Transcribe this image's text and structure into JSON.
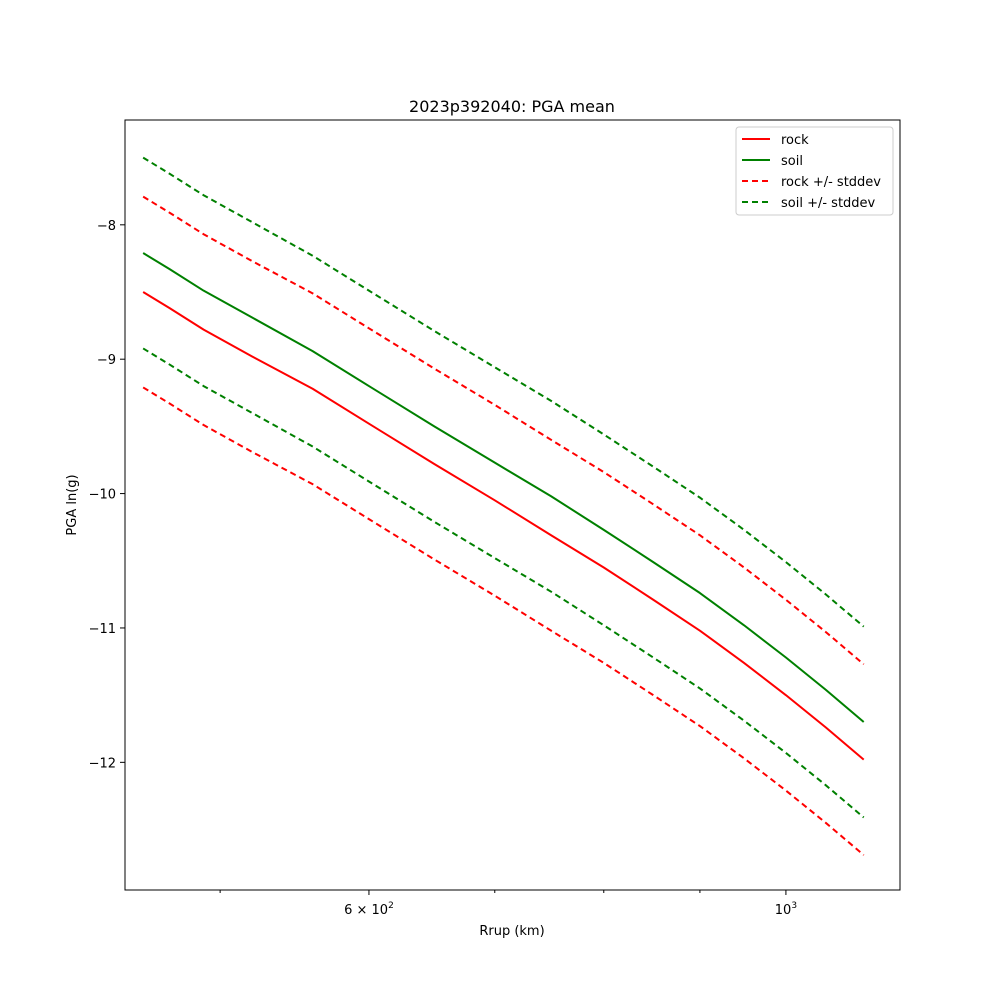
{
  "chart_data": {
    "type": "line",
    "title": "2023p392040: PGA mean",
    "xlabel": "Rrup (km)",
    "ylabel": "PGA ln(g)",
    "xscale": "log",
    "xlim": [
      445,
      1150
    ],
    "ylim": [
      -12.95,
      -7.22
    ],
    "grid": false,
    "legend_position": "top-right",
    "x": [
      455,
      470,
      490,
      520,
      560,
      600,
      650,
      700,
      750,
      800,
      850,
      900,
      950,
      1000,
      1050,
      1100
    ],
    "x_ticks": [
      {
        "value": 600,
        "base": "6",
        "exp": "2",
        "label_prefix": "6 × 10",
        "label": "6×10^2"
      },
      {
        "value": 1000,
        "base": "10",
        "exp": "3",
        "label": "10^3"
      }
    ],
    "x_minor_ticks": [
      500,
      700,
      800,
      900
    ],
    "y_ticks": [
      {
        "value": -8,
        "label": "−8"
      },
      {
        "value": -9,
        "label": "−9"
      },
      {
        "value": -10,
        "label": "−10"
      },
      {
        "value": -11,
        "label": "−11"
      },
      {
        "value": -12,
        "label": "−12"
      }
    ],
    "series": [
      {
        "name": "rock",
        "color": "#ff0000",
        "style": "solid",
        "values": [
          -8.5,
          -8.62,
          -8.78,
          -8.98,
          -9.22,
          -9.48,
          -9.78,
          -10.05,
          -10.31,
          -10.55,
          -10.79,
          -11.02,
          -11.26,
          -11.5,
          -11.74,
          -11.98
        ]
      },
      {
        "name": "soil",
        "color": "#008000",
        "style": "solid",
        "values": [
          -8.21,
          -8.33,
          -8.49,
          -8.69,
          -8.94,
          -9.2,
          -9.5,
          -9.77,
          -10.02,
          -10.27,
          -10.51,
          -10.74,
          -10.98,
          -11.22,
          -11.46,
          -11.7
        ]
      },
      {
        "name": "rock +/- stddev",
        "color": "#ff0000",
        "style": "dashed",
        "upper": [
          -7.79,
          -7.91,
          -8.07,
          -8.27,
          -8.51,
          -8.77,
          -9.07,
          -9.34,
          -9.6,
          -9.84,
          -10.08,
          -10.31,
          -10.55,
          -10.79,
          -11.03,
          -11.27
        ],
        "lower": [
          -9.21,
          -9.33,
          -9.49,
          -9.69,
          -9.93,
          -10.19,
          -10.49,
          -10.76,
          -11.02,
          -11.26,
          -11.5,
          -11.73,
          -11.97,
          -12.21,
          -12.45,
          -12.69
        ]
      },
      {
        "name": "soil +/- stddev",
        "color": "#008000",
        "style": "dashed",
        "upper": [
          -7.5,
          -7.62,
          -7.78,
          -7.98,
          -8.23,
          -8.49,
          -8.79,
          -9.06,
          -9.31,
          -9.56,
          -9.8,
          -10.03,
          -10.27,
          -10.51,
          -10.75,
          -10.99
        ],
        "lower": [
          -8.92,
          -9.04,
          -9.2,
          -9.4,
          -9.65,
          -9.91,
          -10.21,
          -10.48,
          -10.73,
          -10.98,
          -11.22,
          -11.45,
          -11.69,
          -11.93,
          -12.17,
          -12.41
        ]
      }
    ]
  }
}
